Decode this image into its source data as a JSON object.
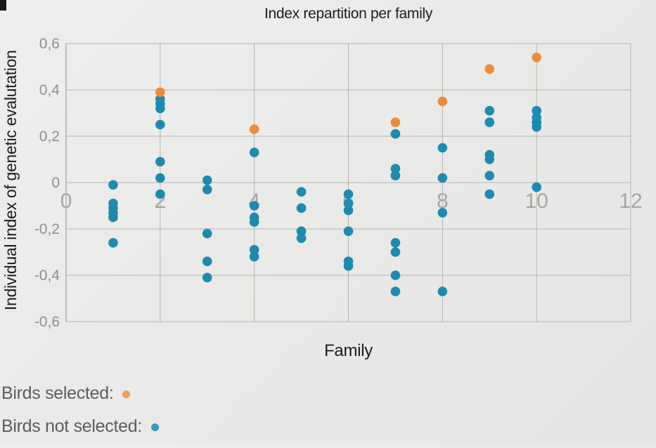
{
  "chart_data": {
    "type": "scatter",
    "title": "Index repartition per family",
    "xlabel": "Family",
    "ylabel": "Individual index of genetic evalutation",
    "xlim": [
      0,
      12
    ],
    "ylim": [
      -0.6,
      0.6
    ],
    "grid": true,
    "x_ticks": [
      0,
      2,
      4,
      6,
      8,
      10,
      12
    ],
    "x_tick_labels": [
      "0",
      "2",
      "4",
      "6",
      "8",
      "10",
      "12"
    ],
    "y_ticks": [
      0.6,
      0.4,
      0.2,
      0,
      -0.2,
      -0.4,
      -0.6
    ],
    "y_tick_labels": [
      "0,6",
      "0,4",
      "0,2",
      "0",
      "-0,2",
      "-0,4",
      "-0,6"
    ],
    "series": [
      {
        "name": "Birds selected",
        "color": "#ee8b3a",
        "points": [
          [
            2,
            0.39
          ],
          [
            4,
            0.23
          ],
          [
            7,
            0.26
          ],
          [
            8,
            0.35
          ],
          [
            9,
            0.49
          ],
          [
            10,
            0.54
          ]
        ]
      },
      {
        "name": "Birds not selected",
        "color": "#1d8ab0",
        "points": [
          [
            1,
            -0.01
          ],
          [
            1,
            -0.09
          ],
          [
            1,
            -0.11
          ],
          [
            1,
            -0.13
          ],
          [
            1,
            -0.15
          ],
          [
            1,
            -0.26
          ],
          [
            2,
            0.36
          ],
          [
            2,
            0.34
          ],
          [
            2,
            0.32
          ],
          [
            2,
            0.25
          ],
          [
            2,
            0.09
          ],
          [
            2,
            0.02
          ],
          [
            2,
            -0.05
          ],
          [
            3,
            0.01
          ],
          [
            3,
            -0.03
          ],
          [
            3,
            -0.22
          ],
          [
            3,
            -0.34
          ],
          [
            3,
            -0.41
          ],
          [
            4,
            0.13
          ],
          [
            4,
            -0.1
          ],
          [
            4,
            -0.15
          ],
          [
            4,
            -0.17
          ],
          [
            4,
            -0.29
          ],
          [
            4,
            -0.32
          ],
          [
            5,
            -0.04
          ],
          [
            5,
            -0.11
          ],
          [
            5,
            -0.21
          ],
          [
            5,
            -0.24
          ],
          [
            6,
            -0.05
          ],
          [
            6,
            -0.09
          ],
          [
            6,
            -0.12
          ],
          [
            6,
            -0.21
          ],
          [
            6,
            -0.34
          ],
          [
            6,
            -0.36
          ],
          [
            7,
            0.21
          ],
          [
            7,
            0.06
          ],
          [
            7,
            0.03
          ],
          [
            7,
            -0.26
          ],
          [
            7,
            -0.3
          ],
          [
            7,
            -0.4
          ],
          [
            7,
            -0.47
          ],
          [
            8,
            0.15
          ],
          [
            8,
            0.02
          ],
          [
            8,
            -0.13
          ],
          [
            8,
            -0.47
          ],
          [
            9,
            0.31
          ],
          [
            9,
            0.26
          ],
          [
            9,
            0.12
          ],
          [
            9,
            0.1
          ],
          [
            9,
            0.03
          ],
          [
            9,
            -0.05
          ],
          [
            10,
            0.31
          ],
          [
            10,
            0.28
          ],
          [
            10,
            0.26
          ],
          [
            10,
            0.24
          ],
          [
            10,
            -0.02
          ]
        ]
      }
    ],
    "legend_position": "bottom-left"
  },
  "legend": {
    "items": [
      {
        "label": "Birds selected:",
        "color": "#f0a055"
      },
      {
        "label": "Birds not selected:",
        "color": "#2f9cc0"
      }
    ]
  },
  "colors": {
    "grid": "#b4b4b2",
    "axis": "#b0b0ae",
    "tick_label_y": "#8f8f8d",
    "tick_label_x": "#a5a5a3",
    "point_selected": "#ee8b3a",
    "point_not_selected": "#1d8ab0"
  }
}
